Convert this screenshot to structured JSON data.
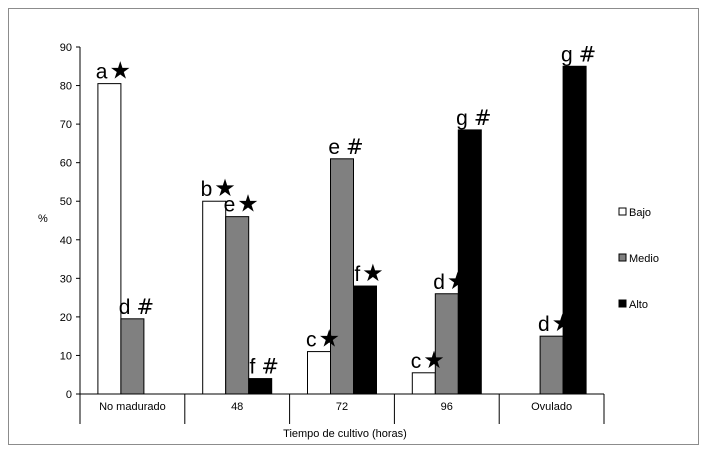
{
  "chart_data": {
    "type": "bar",
    "xlabel": "Tiempo de cultivo (horas)",
    "ylabel": "%",
    "ylim": [
      0,
      90
    ],
    "ytick_step": 10,
    "grid": false,
    "legend_position": "right",
    "categories": [
      "No madurado",
      "48",
      "72",
      "96",
      "Ovulado"
    ],
    "series": [
      {
        "name": "Bajo",
        "color": "#ffffff",
        "values": [
          80.5,
          50,
          11,
          5.5,
          null
        ],
        "labels": [
          "a",
          "b",
          "c",
          "c",
          ""
        ]
      },
      {
        "name": "Medio",
        "color": "#808080",
        "values": [
          19.5,
          46,
          61,
          26,
          15
        ],
        "labels": [
          "d",
          "e",
          "e",
          "d",
          "d"
        ]
      },
      {
        "name": "Alto",
        "color": "#000000",
        "values": [
          null,
          4,
          28,
          68.5,
          85
        ],
        "labels": [
          "",
          "f",
          "f",
          "g",
          "g"
        ]
      }
    ],
    "label_marks": [
      [
        "★",
        "★",
        "★",
        "★",
        ""
      ],
      [
        "#",
        "★",
        "#",
        "★",
        "★"
      ],
      [
        "",
        "#",
        "★",
        "#",
        "#"
      ]
    ]
  }
}
